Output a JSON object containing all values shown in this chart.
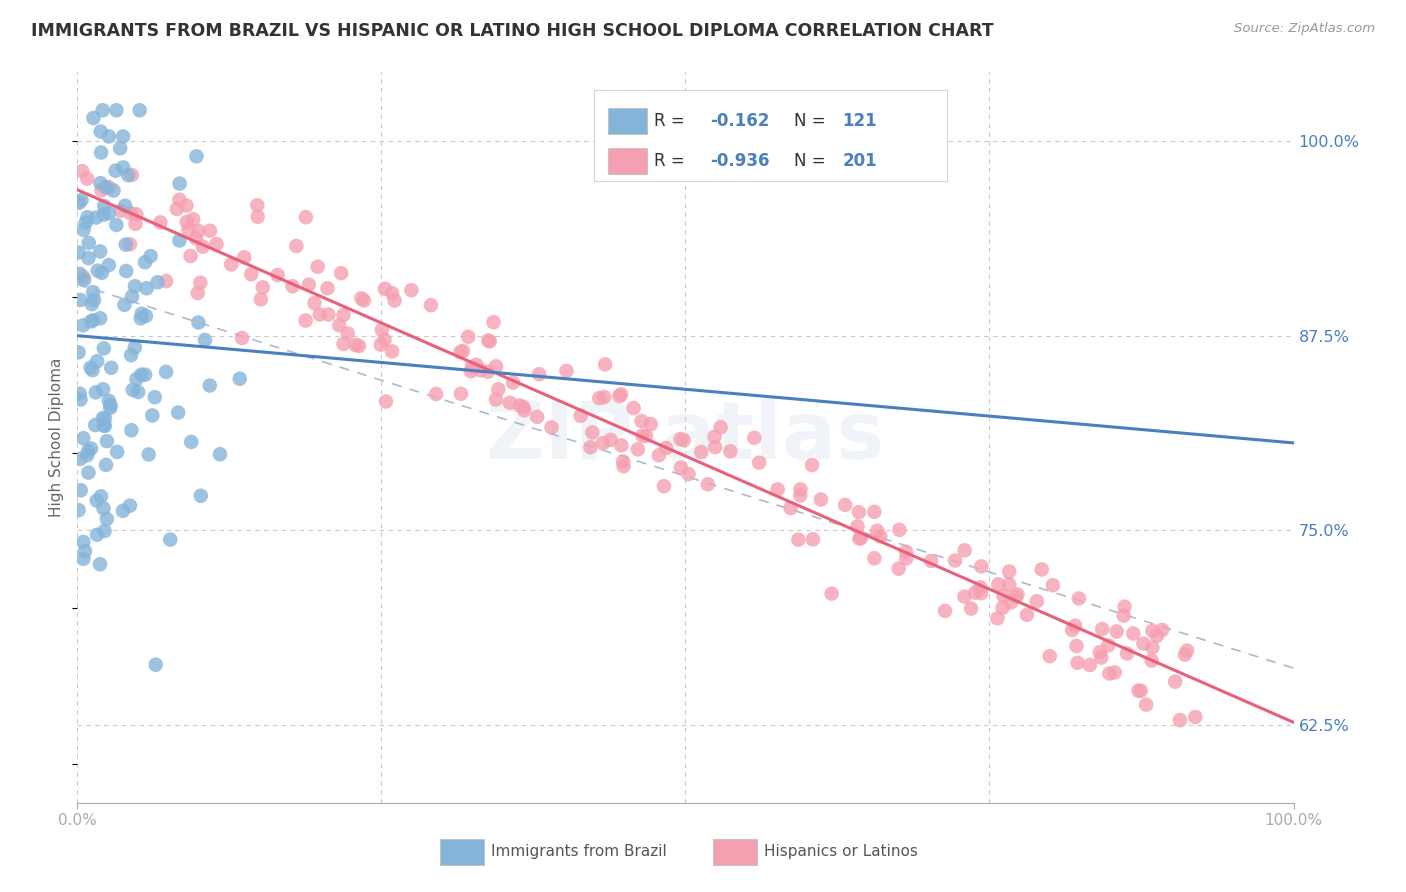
{
  "title": "IMMIGRANTS FROM BRAZIL VS HISPANIC OR LATINO HIGH SCHOOL DIPLOMA CORRELATION CHART",
  "source": "Source: ZipAtlas.com",
  "ylabel": "High School Diploma",
  "xlim": [
    0.0,
    1.0
  ],
  "ylim": [
    0.575,
    1.045
  ],
  "yticks": [
    0.625,
    0.75,
    0.875,
    1.0
  ],
  "ytick_labels": [
    "62.5%",
    "75.0%",
    "87.5%",
    "100.0%"
  ],
  "xtick_labels": [
    "0.0%",
    "100.0%"
  ],
  "legend_R1": "-0.162",
  "legend_N1": "121",
  "legend_R2": "-0.936",
  "legend_N2": "201",
  "legend_label1": "Immigrants from Brazil",
  "legend_label2": "Hispanics or Latinos",
  "blue_color": "#85b4d9",
  "pink_color": "#f5a0b0",
  "blue_line_color": "#4a7fc0",
  "pink_line_color": "#e8607a",
  "dash_line_color": "#aabbd0",
  "background_color": "#ffffff",
  "grid_color": "#c8c8c8",
  "title_color": "#333333",
  "axis_label_color": "#666666"
}
